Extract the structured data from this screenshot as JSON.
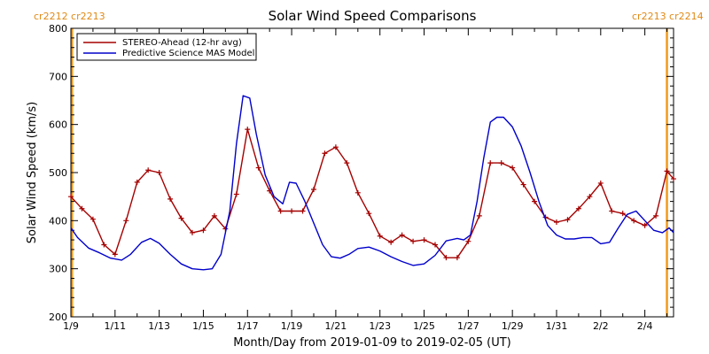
{
  "corner_labels": {
    "left": "cr2212 cr2213",
    "right": "cr2213 cr2214"
  },
  "colors": {
    "stereo": "#a50000",
    "model": "#0000cc",
    "marker": "#f29a1c",
    "axis": "#000000"
  },
  "chart_data": {
    "type": "line",
    "title": "Solar Wind Speed Comparisons",
    "xlabel": "Month/Day from 2019-01-09 to 2019-02-05 (UT)",
    "ylabel": "Solar Wind Speed (km/s)",
    "x_unit": "days since 2019-01-09",
    "xlim": [
      0,
      27.3
    ],
    "ylim": [
      200,
      800
    ],
    "grid": false,
    "legend_position": "top-left",
    "yticks": [
      200,
      300,
      400,
      500,
      600,
      700,
      800
    ],
    "xticks": [
      {
        "x": 0,
        "label": "1/9"
      },
      {
        "x": 2,
        "label": "1/11"
      },
      {
        "x": 4,
        "label": "1/13"
      },
      {
        "x": 6,
        "label": "1/15"
      },
      {
        "x": 8,
        "label": "1/17"
      },
      {
        "x": 10,
        "label": "1/19"
      },
      {
        "x": 12,
        "label": "1/21"
      },
      {
        "x": 14,
        "label": "1/23"
      },
      {
        "x": 16,
        "label": "1/25"
      },
      {
        "x": 18,
        "label": "1/27"
      },
      {
        "x": 20,
        "label": "1/29"
      },
      {
        "x": 22,
        "label": "1/31"
      },
      {
        "x": 24,
        "label": "2/2"
      },
      {
        "x": 26,
        "label": "2/4"
      }
    ],
    "vertical_markers": [
      0.05,
      27.0
    ],
    "series": [
      {
        "name": "STEREO-Ahead (12-hr avg)",
        "markers": true,
        "x": [
          0,
          0.5,
          1.0,
          1.5,
          2.0,
          2.5,
          3.0,
          3.5,
          4.0,
          4.5,
          5.0,
          5.5,
          6.0,
          6.5,
          7.0,
          7.5,
          8.0,
          8.5,
          9.0,
          9.5,
          10.0,
          10.5,
          11.0,
          11.5,
          12.0,
          12.5,
          13.0,
          13.5,
          14.0,
          14.5,
          15.0,
          15.5,
          16.0,
          16.5,
          17.0,
          17.5,
          18.0,
          18.5,
          19.0,
          19.5,
          20.0,
          20.5,
          21.0,
          21.5,
          22.0,
          22.5,
          23.0,
          23.5,
          24.0,
          24.5,
          25.0,
          25.5,
          26.0,
          26.5,
          27.0,
          27.3
        ],
        "y": [
          450,
          425,
          403,
          350,
          330,
          400,
          480,
          505,
          500,
          445,
          405,
          375,
          380,
          410,
          383,
          455,
          590,
          510,
          462,
          420,
          420,
          420,
          465,
          540,
          553,
          520,
          458,
          415,
          368,
          355,
          370,
          357,
          360,
          350,
          323,
          323,
          357,
          410,
          520,
          520,
          510,
          475,
          440,
          407,
          397,
          402,
          425,
          450,
          478,
          420,
          415,
          400,
          390,
          410,
          503,
          487
        ]
      },
      {
        "name": "Predictive Science MAS Model",
        "markers": false,
        "x": [
          0,
          0.3,
          0.8,
          1.3,
          1.8,
          2.3,
          2.7,
          3.2,
          3.6,
          4.0,
          4.5,
          5.0,
          5.5,
          6.0,
          6.4,
          6.8,
          7.2,
          7.5,
          7.8,
          8.1,
          8.4,
          8.8,
          9.2,
          9.6,
          9.9,
          10.2,
          10.6,
          11.0,
          11.4,
          11.8,
          12.2,
          12.6,
          13.0,
          13.5,
          14.0,
          14.5,
          15.0,
          15.5,
          16.0,
          16.5,
          17.0,
          17.5,
          17.8,
          18.1,
          18.4,
          18.7,
          19.0,
          19.3,
          19.6,
          20.0,
          20.4,
          20.8,
          21.2,
          21.6,
          22.0,
          22.4,
          22.8,
          23.2,
          23.6,
          24.0,
          24.4,
          24.8,
          25.2,
          25.6,
          26.0,
          26.4,
          26.8,
          27.1,
          27.3
        ],
        "y": [
          385,
          365,
          343,
          333,
          322,
          318,
          330,
          355,
          363,
          353,
          330,
          310,
          300,
          298,
          300,
          330,
          420,
          560,
          660,
          655,
          580,
          495,
          450,
          435,
          480,
          478,
          440,
          395,
          350,
          325,
          322,
          330,
          342,
          345,
          337,
          325,
          315,
          307,
          310,
          328,
          358,
          363,
          360,
          370,
          440,
          530,
          605,
          615,
          615,
          595,
          555,
          500,
          440,
          390,
          370,
          362,
          362,
          365,
          365,
          352,
          355,
          385,
          413,
          420,
          400,
          380,
          375,
          385,
          375
        ]
      }
    ]
  }
}
